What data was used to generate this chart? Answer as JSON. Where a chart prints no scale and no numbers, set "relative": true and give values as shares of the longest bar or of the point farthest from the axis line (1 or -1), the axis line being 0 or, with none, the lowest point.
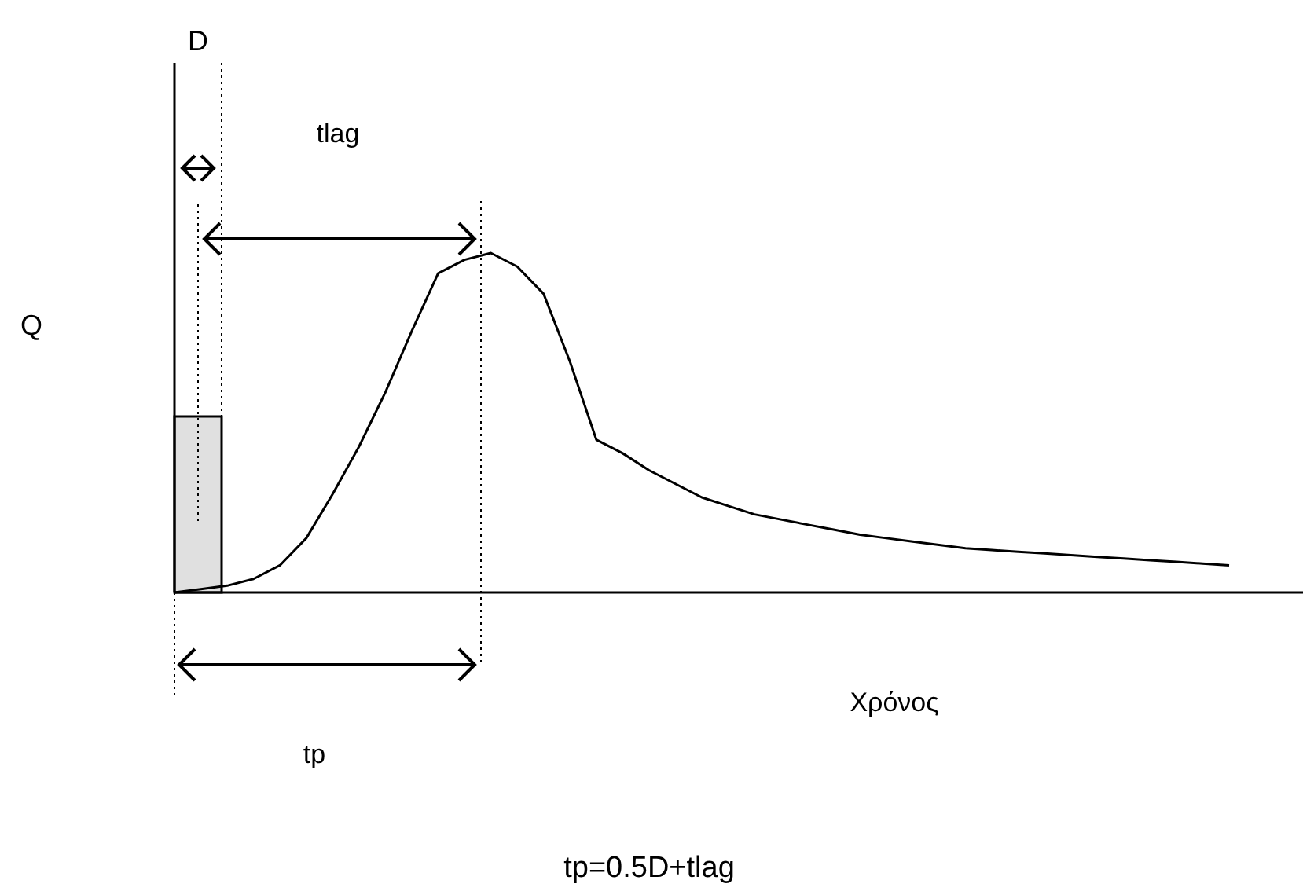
{
  "chart_data": {
    "type": "line",
    "relative": true,
    "xlabel": "Χρόνος",
    "ylabel": "Q",
    "categories": [
      null,
      null,
      null,
      null,
      null,
      null,
      null,
      null,
      null,
      null,
      null,
      null,
      null,
      null,
      null,
      null,
      null,
      null,
      null,
      null,
      null,
      null,
      null,
      null,
      null,
      null,
      null,
      null,
      null,
      null,
      null,
      null,
      null,
      null,
      null,
      null,
      null,
      null,
      null,
      null,
      null
    ],
    "series": [
      {
        "color": "#000000",
        "values": [
          0,
          0.01,
          0.02,
          0.04,
          0.08,
          0.16,
          0.29,
          0.43,
          0.59,
          0.77,
          0.94,
          0.98,
          1.0,
          0.96,
          0.88,
          0.68,
          0.45,
          0.41,
          0.36,
          0.32,
          0.28,
          0.255,
          0.23,
          0.215,
          0.2,
          0.185,
          0.17,
          0.16,
          0.15,
          0.14,
          0.13,
          0.125,
          0.12,
          0.115,
          0.11,
          0.105,
          0.1,
          0.095,
          0.09,
          0.085,
          0.08
        ]
      }
    ],
    "annotations": [
      "D",
      "tlag",
      "tp",
      "tp=0.5D+tlag"
    ]
  }
}
